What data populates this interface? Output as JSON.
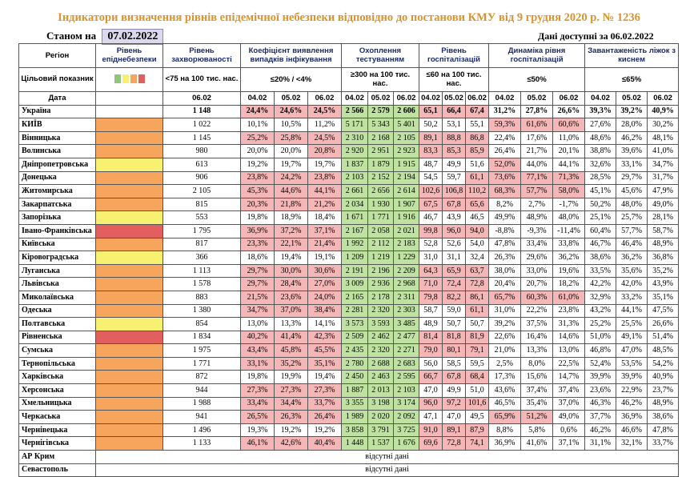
{
  "title": "Індикатори визначення рівнів епідемічної небезпеки відповідно до постанови КМУ від 9 грудня 2020 р. № 1236",
  "as_of_label": "Станом на",
  "as_of_date": "07.02.2022",
  "data_available": "Дані доступні за 06.02.2022",
  "header": {
    "region": "Регіон",
    "target": "Цільовий показник",
    "date": "Дата",
    "level": "Рівень епіднебезпеки",
    "incidence": "Рівень захворюваності",
    "incidence_target": "<75 на 100 тис. нас.",
    "positivity": "Коефіцієнт виявлення випадків інфікування",
    "positivity_target": "≤20% / <4%",
    "testing": "Охоплення тестуванням",
    "testing_target": "≥300 на 100 тис. нас.",
    "hosp": "Рівень госпіталізацій",
    "hosp_target": "≤60 на 100 тис. нас.",
    "dynamics": "Динаміка рівня госпіталізацій",
    "dynamics_target": "≤50%",
    "beds": "Завантаженість ліжок з киснем",
    "beds_target": "≤65%",
    "legend_colors": [
      "#8fc67a",
      "#f8f070",
      "#f7a45c",
      "#e25f5f"
    ],
    "incidence_date": "06.02",
    "dates": [
      "04.02",
      "05.02",
      "06.02"
    ]
  },
  "colors": {
    "orange": "#f7a45c",
    "yellow": "#f8f070",
    "red": "#e25f5f",
    "pink": "#f4b6b6",
    "green": "#bfe2a3",
    "title": "#d9932f"
  },
  "rows": [
    {
      "region": "Україна",
      "level": "white",
      "inc": "1 148",
      "pos": [
        "24,4%",
        "24,6%",
        "24,5%"
      ],
      "tst": [
        "2 566",
        "2 579",
        "2 606"
      ],
      "hosp": [
        "65,1",
        "66,4",
        "67,4"
      ],
      "dyn": [
        "31,2%",
        "27,8%",
        "26,6%"
      ],
      "beds": [
        "39,3%",
        "39,2%",
        "40,9%"
      ],
      "pc": "rrr",
      "tc": "ggg",
      "hc": "rrr"
    },
    {
      "region": "КИЇВ",
      "level": "orange",
      "inc": "1 022",
      "pos": [
        "10,1%",
        "10,5%",
        "11,2%"
      ],
      "tst": [
        "5 171",
        "5 343",
        "5 401"
      ],
      "hosp": [
        "50,2",
        "53,1",
        "55,1"
      ],
      "dyn": [
        "59,3%",
        "61,6%",
        "60,6%"
      ],
      "beds": [
        "27,6%",
        "28,0%",
        "30,2%"
      ],
      "pc": "nnn",
      "tc": "ggg",
      "hc": "nnn",
      "dc": "rrr"
    },
    {
      "region": "Вінницька",
      "level": "orange",
      "inc": "1 145",
      "pos": [
        "25,2%",
        "25,8%",
        "24,5%"
      ],
      "tst": [
        "2 310",
        "2 168",
        "2 105"
      ],
      "hosp": [
        "89,1",
        "88,8",
        "86,8"
      ],
      "dyn": [
        "22,4%",
        "17,6%",
        "11,0%"
      ],
      "beds": [
        "48,6%",
        "46,2%",
        "48,1%"
      ],
      "pc": "rrr",
      "tc": "ggg",
      "hc": "rrr"
    },
    {
      "region": "Волинська",
      "level": "orange",
      "inc": "980",
      "pos": [
        "20,0%",
        "20,0%",
        "20,8%"
      ],
      "tst": [
        "2 920",
        "2 951",
        "2 923"
      ],
      "hosp": [
        "83,3",
        "85,3",
        "85,9"
      ],
      "dyn": [
        "26,4%",
        "21,7%",
        "20,1%"
      ],
      "beds": [
        "38,8%",
        "39,6%",
        "41,0%"
      ],
      "pc": "nnr",
      "tc": "ggg",
      "hc": "rrr"
    },
    {
      "region": "Дніпропетровська",
      "level": "yellow",
      "inc": "613",
      "pos": [
        "19,2%",
        "19,7%",
        "19,7%"
      ],
      "tst": [
        "1 837",
        "1 879",
        "1 915"
      ],
      "hosp": [
        "48,7",
        "49,9",
        "51,6"
      ],
      "dyn": [
        "52,0%",
        "44,0%",
        "44,1%"
      ],
      "beds": [
        "32,6%",
        "33,1%",
        "34,7%"
      ],
      "pc": "nnn",
      "tc": "ggg",
      "hc": "nnn",
      "dc": "rnn"
    },
    {
      "region": "Донецька",
      "level": "orange",
      "inc": "906",
      "pos": [
        "23,8%",
        "24,2%",
        "23,8%"
      ],
      "tst": [
        "2 103",
        "2 152",
        "2 194"
      ],
      "hosp": [
        "54,5",
        "59,7",
        "61,1"
      ],
      "dyn": [
        "73,6%",
        "77,1%",
        "71,3%"
      ],
      "beds": [
        "28,5%",
        "29,7%",
        "31,7%"
      ],
      "pc": "rrr",
      "tc": "ggg",
      "hc": "nnr",
      "dc": "rrr"
    },
    {
      "region": "Житомирська",
      "level": "orange",
      "inc": "2 105",
      "pos": [
        "45,3%",
        "44,6%",
        "44,1%"
      ],
      "tst": [
        "2 661",
        "2 656",
        "2 614"
      ],
      "hosp": [
        "102,6",
        "106,8",
        "110,2"
      ],
      "dyn": [
        "68,3%",
        "57,7%",
        "58,0%"
      ],
      "beds": [
        "45,1%",
        "45,6%",
        "47,9%"
      ],
      "pc": "rrr",
      "tc": "ggg",
      "hc": "rrr",
      "dc": "rrr"
    },
    {
      "region": "Закарпатська",
      "level": "orange",
      "inc": "815",
      "pos": [
        "20,3%",
        "21,8%",
        "21,2%"
      ],
      "tst": [
        "2 034",
        "1 930",
        "1 907"
      ],
      "hosp": [
        "67,5",
        "67,8",
        "65,6"
      ],
      "dyn": [
        "8,2%",
        "2,7%",
        "-1,7%"
      ],
      "beds": [
        "50,2%",
        "48,0%",
        "49,0%"
      ],
      "pc": "rrr",
      "tc": "ggg",
      "hc": "rrr"
    },
    {
      "region": "Запорізька",
      "level": "yellow",
      "inc": "553",
      "pos": [
        "19,8%",
        "18,9%",
        "18,4%"
      ],
      "tst": [
        "1 671",
        "1 771",
        "1 916"
      ],
      "hosp": [
        "46,7",
        "43,9",
        "46,5"
      ],
      "dyn": [
        "49,9%",
        "48,9%",
        "48,0%"
      ],
      "beds": [
        "25,1%",
        "25,7%",
        "28,1%"
      ],
      "pc": "nnn",
      "tc": "ggg",
      "hc": "nnn"
    },
    {
      "region": "Івано-Франківська",
      "level": "red",
      "inc": "1 795",
      "pos": [
        "36,9%",
        "37,2%",
        "37,1%"
      ],
      "tst": [
        "2 167",
        "2 058",
        "2 021"
      ],
      "hosp": [
        "99,8",
        "96,0",
        "94,0"
      ],
      "dyn": [
        "-8,8%",
        "-9,3%",
        "-11,4%"
      ],
      "beds": [
        "60,4%",
        "57,7%",
        "58,7%"
      ],
      "pc": "rrr",
      "tc": "ggg",
      "hc": "rrr"
    },
    {
      "region": "Київська",
      "level": "orange",
      "inc": "817",
      "pos": [
        "23,3%",
        "22,1%",
        "21,4%"
      ],
      "tst": [
        "1 992",
        "2 112",
        "2 183"
      ],
      "hosp": [
        "52,8",
        "52,6",
        "54,0"
      ],
      "dyn": [
        "47,8%",
        "33,4%",
        "33,8%"
      ],
      "beds": [
        "46,7%",
        "46,4%",
        "48,9%"
      ],
      "pc": "rrr",
      "tc": "ggg",
      "hc": "nnn"
    },
    {
      "region": "Кіровоградська",
      "level": "yellow",
      "inc": "366",
      "pos": [
        "18,6%",
        "19,4%",
        "19,1%"
      ],
      "tst": [
        "1 209",
        "1 219",
        "1 229"
      ],
      "hosp": [
        "31,0",
        "31,1",
        "32,4"
      ],
      "dyn": [
        "26,3%",
        "29,6%",
        "36,2%"
      ],
      "beds": [
        "38,6%",
        "36,2%",
        "36,8%"
      ],
      "pc": "nnn",
      "tc": "ggg",
      "hc": "nnn"
    },
    {
      "region": "Луганська",
      "level": "orange",
      "inc": "1 113",
      "pos": [
        "29,7%",
        "30,0%",
        "30,6%"
      ],
      "tst": [
        "2 191",
        "2 196",
        "2 209"
      ],
      "hosp": [
        "64,3",
        "65,9",
        "63,7"
      ],
      "dyn": [
        "38,0%",
        "33,0%",
        "19,6%"
      ],
      "beds": [
        "33,5%",
        "35,6%",
        "35,2%"
      ],
      "pc": "rrr",
      "tc": "ggg",
      "hc": "rrr"
    },
    {
      "region": "Львівська",
      "level": "orange",
      "inc": "1 578",
      "pos": [
        "29,7%",
        "28,4%",
        "27,0%"
      ],
      "tst": [
        "3 009",
        "2 936",
        "2 968"
      ],
      "hosp": [
        "71,0",
        "72,4",
        "72,8"
      ],
      "dyn": [
        "20,4%",
        "20,7%",
        "18,2%"
      ],
      "beds": [
        "42,2%",
        "42,0%",
        "43,9%"
      ],
      "pc": "rrr",
      "tc": "ggg",
      "hc": "rrr"
    },
    {
      "region": "Миколаївська",
      "level": "orange",
      "inc": "883",
      "pos": [
        "21,5%",
        "23,6%",
        "24,0%"
      ],
      "tst": [
        "2 165",
        "2 178",
        "2 311"
      ],
      "hosp": [
        "79,8",
        "82,2",
        "86,1"
      ],
      "dyn": [
        "65,7%",
        "60,3%",
        "61,0%"
      ],
      "beds": [
        "32,9%",
        "33,2%",
        "35,1%"
      ],
      "pc": "rrr",
      "tc": "ggg",
      "hc": "rrr",
      "dc": "rrr"
    },
    {
      "region": "Одеська",
      "level": "orange",
      "inc": "1 380",
      "pos": [
        "34,7%",
        "37,0%",
        "38,4%"
      ],
      "tst": [
        "2 281",
        "2 320",
        "2 303"
      ],
      "hosp": [
        "58,7",
        "59,0",
        "61,1"
      ],
      "dyn": [
        "31,0%",
        "22,2%",
        "23,8%"
      ],
      "beds": [
        "43,2%",
        "44,1%",
        "47,5%"
      ],
      "pc": "rrr",
      "tc": "ggg",
      "hc": "nnr"
    },
    {
      "region": "Полтавська",
      "level": "yellow",
      "inc": "854",
      "pos": [
        "13,0%",
        "13,3%",
        "14,1%"
      ],
      "tst": [
        "3 573",
        "3 593",
        "3 485"
      ],
      "hosp": [
        "48,9",
        "50,7",
        "50,7"
      ],
      "dyn": [
        "39,2%",
        "37,5%",
        "31,3%"
      ],
      "beds": [
        "25,2%",
        "25,5%",
        "26,6%"
      ],
      "pc": "nnn",
      "tc": "ggg",
      "hc": "nnn"
    },
    {
      "region": "Рівненська",
      "level": "red",
      "inc": "1 834",
      "pos": [
        "40,2%",
        "41,4%",
        "42,3%"
      ],
      "tst": [
        "2 509",
        "2 462",
        "2 477"
      ],
      "hosp": [
        "81,4",
        "81,8",
        "81,9"
      ],
      "dyn": [
        "22,6%",
        "16,4%",
        "14,6%"
      ],
      "beds": [
        "51,0%",
        "49,1%",
        "51,4%"
      ],
      "pc": "rrr",
      "tc": "ggg",
      "hc": "rrr"
    },
    {
      "region": "Сумська",
      "level": "orange",
      "inc": "1 975",
      "pos": [
        "43,4%",
        "45,8%",
        "45,5%"
      ],
      "tst": [
        "2 435",
        "2 320",
        "2 271"
      ],
      "hosp": [
        "79,0",
        "80,1",
        "79,1"
      ],
      "dyn": [
        "21,0%",
        "13,3%",
        "13,0%"
      ],
      "beds": [
        "46,8%",
        "47,0%",
        "48,5%"
      ],
      "pc": "rrr",
      "tc": "ggg",
      "hc": "rrr"
    },
    {
      "region": "Тернопільська",
      "level": "orange",
      "inc": "1 771",
      "pos": [
        "33,1%",
        "35,2%",
        "35,1%"
      ],
      "tst": [
        "2 780",
        "2 688",
        "2 683"
      ],
      "hosp": [
        "56,0",
        "58,5",
        "59,5"
      ],
      "dyn": [
        "2,5%",
        "8,0%",
        "22,5%"
      ],
      "beds": [
        "52,4%",
        "53,5%",
        "54,2%"
      ],
      "pc": "rrr",
      "tc": "ggg",
      "hc": "nnn"
    },
    {
      "region": "Харківська",
      "level": "orange",
      "inc": "872",
      "pos": [
        "19,8%",
        "19,9%",
        "19,4%"
      ],
      "tst": [
        "2 450",
        "2 463",
        "2 595"
      ],
      "hosp": [
        "66,7",
        "67,8",
        "68,4"
      ],
      "dyn": [
        "17,3%",
        "15,6%",
        "14,7%"
      ],
      "beds": [
        "39,9%",
        "39,9%",
        "40,9%"
      ],
      "pc": "nnn",
      "tc": "ggg",
      "hc": "rrr"
    },
    {
      "region": "Херсонська",
      "level": "orange",
      "inc": "944",
      "pos": [
        "27,3%",
        "27,3%",
        "27,3%"
      ],
      "tst": [
        "1 887",
        "2 013",
        "2 103"
      ],
      "hosp": [
        "47,0",
        "49,9",
        "51,0"
      ],
      "dyn": [
        "43,6%",
        "37,4%",
        "37,4%"
      ],
      "beds": [
        "23,6%",
        "22,9%",
        "23,7%"
      ],
      "pc": "rrr",
      "tc": "ggg",
      "hc": "nnn"
    },
    {
      "region": "Хмельницька",
      "level": "orange",
      "inc": "1 988",
      "pos": [
        "33,4%",
        "34,4%",
        "33,7%"
      ],
      "tst": [
        "3 355",
        "3 198",
        "3 174"
      ],
      "hosp": [
        "96,0",
        "97,2",
        "101,6"
      ],
      "dyn": [
        "46,5%",
        "35,4%",
        "37,0%"
      ],
      "beds": [
        "46,3%",
        "46,2%",
        "48,9%"
      ],
      "pc": "rrr",
      "tc": "ggg",
      "hc": "rrr"
    },
    {
      "region": "Черкаська",
      "level": "orange",
      "inc": "941",
      "pos": [
        "26,5%",
        "26,3%",
        "26,4%"
      ],
      "tst": [
        "1 989",
        "2 020",
        "2 092"
      ],
      "hosp": [
        "47,1",
        "47,0",
        "49,5"
      ],
      "dyn": [
        "65,9%",
        "51,2%",
        "49,0%"
      ],
      "beds": [
        "37,7%",
        "36,9%",
        "38,6%"
      ],
      "pc": "rrr",
      "tc": "ggg",
      "hc": "nnn",
      "dc": "rrn"
    },
    {
      "region": "Чернівецька",
      "level": "orange",
      "inc": "1 496",
      "pos": [
        "19,3%",
        "19,2%",
        "19,2%"
      ],
      "tst": [
        "3 858",
        "3 791",
        "3 725"
      ],
      "hosp": [
        "91,0",
        "89,1",
        "87,9"
      ],
      "dyn": [
        "8,8%",
        "5,8%",
        "0,6%"
      ],
      "beds": [
        "46,2%",
        "46,6%",
        "47,8%"
      ],
      "pc": "nnn",
      "tc": "ggg",
      "hc": "rrr"
    },
    {
      "region": "Чернігівська",
      "level": "orange",
      "inc": "1 133",
      "pos": [
        "46,1%",
        "42,6%",
        "40,4%"
      ],
      "tst": [
        "1 448",
        "1 537",
        "1 676"
      ],
      "hosp": [
        "69,6",
        "72,8",
        "74,1"
      ],
      "dyn": [
        "36,9%",
        "41,6%",
        "37,1%"
      ],
      "beds": [
        "31,1%",
        "32,1%",
        "33,7%"
      ],
      "pc": "rrr",
      "tc": "ggg",
      "hc": "rrr"
    }
  ],
  "absent_rows": [
    {
      "region": "АР Крим",
      "text": "відсутні дані"
    },
    {
      "region": "Севастополь",
      "text": "відсутні дані"
    }
  ]
}
